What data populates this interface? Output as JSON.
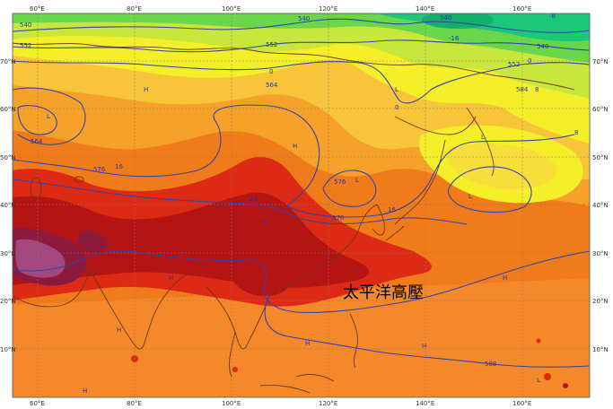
{
  "map": {
    "lon_labels": [
      "60°E",
      "80°E",
      "100°E",
      "120°E",
      "140°E",
      "160°E"
    ],
    "lat_labels_left": [
      "70°N",
      "60°N",
      "50°N",
      "40°N",
      "30°N",
      "20°N",
      "10°N"
    ],
    "lat_labels_right": [
      "70°N",
      "60°N",
      "50°N",
      "40°N",
      "30°N",
      "20°N",
      "10°N"
    ],
    "annotation": "太平洋高壓",
    "contour_labels": [
      "540",
      "552",
      "564",
      "576",
      "588",
      "584",
      "16",
      "24",
      "-8",
      "-16",
      "0",
      "8"
    ],
    "high_low_markers": [
      "H",
      "L"
    ],
    "colors": {
      "deep_green": "#1cc77a",
      "green": "#6ad64a",
      "yellow_green": "#c8e63c",
      "yellow": "#f5ef2a",
      "light_orange": "#f8c43a",
      "orange": "#f5a12a",
      "orange_red": "#f07b1a",
      "red_orange": "#ec5a14",
      "red": "#dc2a14",
      "dark_red": "#b41414",
      "maroon": "#8c1a3c",
      "purple": "#a4477e",
      "contour": "#3344aa",
      "coast": "#6b3a14",
      "grid": "#8c7a6a"
    }
  }
}
